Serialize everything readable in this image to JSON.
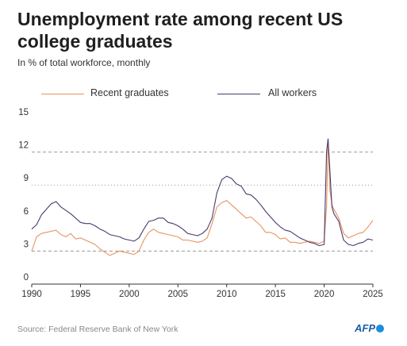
{
  "title": "Unemployment rate among recent US college graduates",
  "subtitle": "In % of total workforce, monthly",
  "source": "Source: Federal Reserve Bank of New York",
  "logo_text": "AFP",
  "colors": {
    "recent_graduates": "#e8935f",
    "all_workers": "#4a3a6e",
    "gridline": "#999999",
    "axis": "#333333"
  },
  "legend": [
    {
      "label": "Recent graduates",
      "color": "#e8935f"
    },
    {
      "label": "All workers",
      "color": "#4a3a6e"
    }
  ],
  "chart_data": {
    "type": "line",
    "title": "Unemployment rate among recent US college graduates",
    "subtitle": "In % of total workforce, monthly",
    "xlim": [
      1990,
      2025
    ],
    "ylim": [
      0,
      15
    ],
    "x_ticks": [
      1990,
      1995,
      2000,
      2005,
      2010,
      2015,
      2020,
      2025
    ],
    "y_ticks": [
      0,
      3,
      6,
      9,
      12,
      15
    ],
    "dashed_gridlines": [
      3,
      12
    ],
    "dotted_gridlines": [
      9
    ],
    "grid": true,
    "legend_position": "top",
    "series": [
      {
        "name": "Recent graduates",
        "color": "#e8935f",
        "x": [
          1990,
          1990.5,
          1991,
          1991.5,
          1992,
          1992.5,
          1993,
          1993.5,
          1994,
          1994.5,
          1995,
          1995.5,
          1996,
          1996.5,
          1997,
          1997.5,
          1998,
          1998.5,
          1999,
          1999.5,
          2000,
          2000.5,
          2001,
          2001.5,
          2002,
          2002.5,
          2003,
          2003.5,
          2004,
          2004.5,
          2005,
          2005.5,
          2006,
          2006.5,
          2007,
          2007.5,
          2008,
          2008.5,
          2009,
          2009.5,
          2010,
          2010.5,
          2011,
          2011.5,
          2012,
          2012.5,
          2013,
          2013.5,
          2014,
          2014.5,
          2015,
          2015.5,
          2016,
          2016.5,
          2017,
          2017.5,
          2018,
          2018.5,
          2019,
          2019.5,
          2020,
          2020.25,
          2020.4,
          2020.6,
          2020.8,
          2021,
          2021.5,
          2022,
          2022.5,
          2023,
          2023.5,
          2024,
          2024.5,
          2025
        ],
        "values": [
          3.0,
          4.3,
          4.6,
          4.7,
          4.8,
          4.9,
          4.5,
          4.3,
          4.6,
          4.1,
          4.2,
          4.0,
          3.8,
          3.6,
          3.2,
          2.9,
          2.6,
          2.8,
          3.0,
          2.9,
          2.8,
          2.7,
          3.0,
          4.0,
          4.7,
          5.0,
          4.7,
          4.6,
          4.5,
          4.4,
          4.3,
          4.0,
          4.0,
          3.9,
          3.8,
          3.9,
          4.2,
          5.5,
          7.0,
          7.4,
          7.6,
          7.2,
          6.8,
          6.4,
          6.0,
          6.1,
          5.7,
          5.3,
          4.7,
          4.7,
          4.5,
          4.1,
          4.2,
          3.8,
          3.8,
          3.7,
          3.8,
          3.9,
          3.8,
          3.7,
          3.9,
          7.0,
          13.2,
          8.5,
          7.2,
          6.8,
          6.0,
          4.6,
          4.2,
          4.4,
          4.6,
          4.7,
          5.2,
          5.8
        ]
      },
      {
        "name": "All workers",
        "color": "#4a3a6e",
        "x": [
          1990,
          1990.5,
          1991,
          1991.5,
          1992,
          1992.5,
          1993,
          1993.5,
          1994,
          1994.5,
          1995,
          1995.5,
          1996,
          1996.5,
          1997,
          1997.5,
          1998,
          1998.5,
          1999,
          1999.5,
          2000,
          2000.5,
          2001,
          2001.5,
          2002,
          2002.5,
          2003,
          2003.5,
          2004,
          2004.5,
          2005,
          2005.5,
          2006,
          2006.5,
          2007,
          2007.5,
          2008,
          2008.5,
          2009,
          2009.5,
          2010,
          2010.5,
          2011,
          2011.5,
          2012,
          2012.5,
          2013,
          2013.5,
          2014,
          2014.5,
          2015,
          2015.5,
          2016,
          2016.5,
          2017,
          2017.5,
          2018,
          2018.5,
          2019,
          2019.5,
          2020,
          2020.25,
          2020.4,
          2020.6,
          2020.8,
          2021,
          2021.5,
          2022,
          2022.5,
          2023,
          2023.5,
          2024,
          2024.5,
          2025
        ],
        "values": [
          5.0,
          5.4,
          6.3,
          6.8,
          7.3,
          7.5,
          7.0,
          6.7,
          6.4,
          6.0,
          5.6,
          5.5,
          5.5,
          5.3,
          5.0,
          4.8,
          4.5,
          4.4,
          4.3,
          4.1,
          4.0,
          3.9,
          4.2,
          5.0,
          5.7,
          5.8,
          6.0,
          6.0,
          5.6,
          5.5,
          5.3,
          5.0,
          4.6,
          4.5,
          4.4,
          4.6,
          5.0,
          6.0,
          8.3,
          9.5,
          9.8,
          9.6,
          9.1,
          8.9,
          8.2,
          8.1,
          7.7,
          7.2,
          6.6,
          6.1,
          5.6,
          5.2,
          4.9,
          4.8,
          4.5,
          4.2,
          4.0,
          3.8,
          3.7,
          3.5,
          3.6,
          12.0,
          13.2,
          10.2,
          7.0,
          6.4,
          5.7,
          4.0,
          3.6,
          3.5,
          3.7,
          3.8,
          4.1,
          4.0
        ]
      }
    ]
  }
}
